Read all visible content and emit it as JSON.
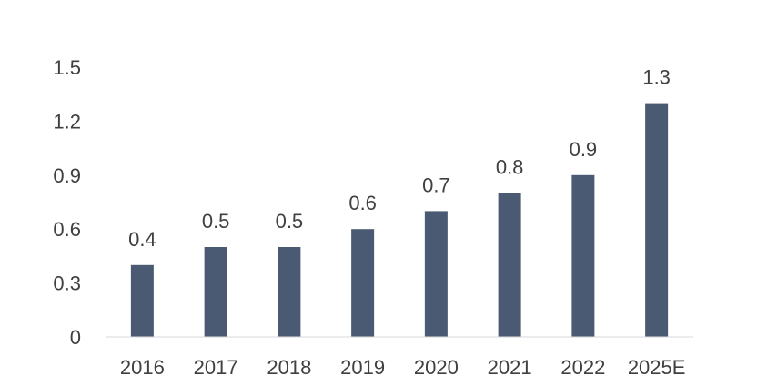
{
  "chart_data": {
    "type": "bar",
    "title": "",
    "xlabel": "",
    "ylabel": "",
    "categories": [
      "2016",
      "2017",
      "2018",
      "2019",
      "2020",
      "2021",
      "2022",
      "2025E"
    ],
    "values": [
      0.4,
      0.5,
      0.5,
      0.6,
      0.7,
      0.8,
      0.9,
      1.3
    ],
    "value_labels": [
      "0.4",
      "0.5",
      "0.5",
      "0.6",
      "0.7",
      "0.8",
      "0.9",
      "1.3"
    ],
    "ylim": [
      0,
      1.5
    ],
    "yticks": [
      0,
      0.3,
      0.6,
      0.9,
      1.2,
      1.5
    ],
    "ytick_labels": [
      "0",
      "0.3",
      "0.6",
      "0.9",
      "1.2",
      "1.5"
    ],
    "grid": false,
    "legend": "none",
    "bar_color": "#4a5a72",
    "text_color": "#404040",
    "axis_color": "#d9d9d9"
  }
}
